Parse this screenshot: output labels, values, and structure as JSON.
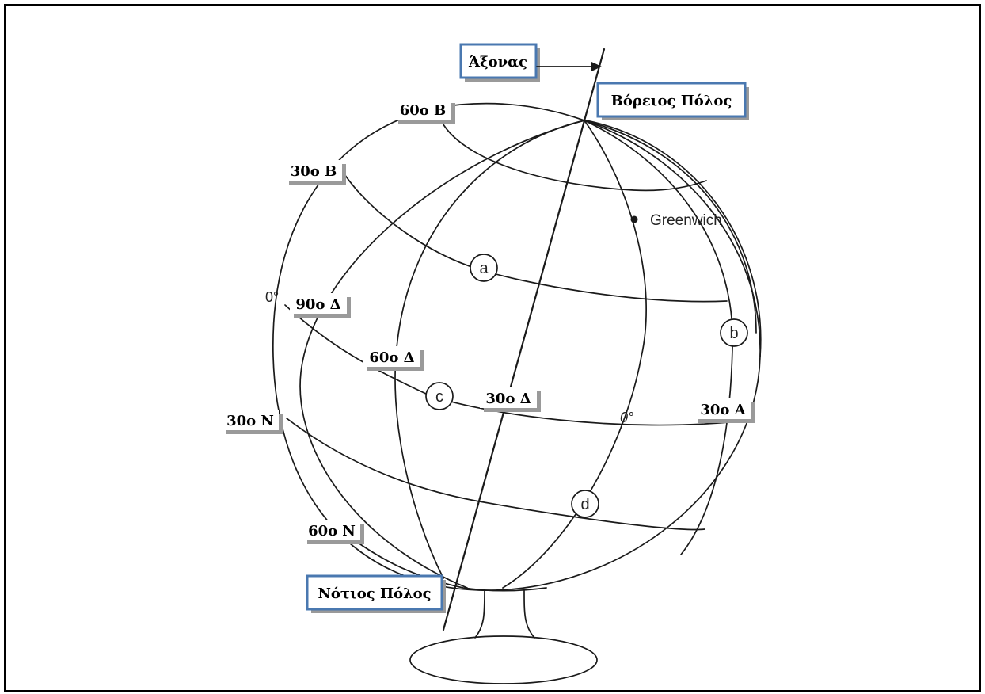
{
  "callouts": {
    "axis": "Άξονας",
    "north_pole": "Βόρειος Πόλος",
    "south_pole": "Νότιος Πόλος"
  },
  "latitudes": {
    "lat_60n": "60ο Β",
    "lat_30n": "30ο Β",
    "lat_30s": "30ο Ν",
    "lat_60s": "60ο Ν"
  },
  "longitudes": {
    "lon_90w": "90ο Δ",
    "lon_60w": "60ο Δ",
    "lon_30w": "30ο Δ",
    "lon_30e": "30ο Α"
  },
  "graticule_labels": {
    "equator_zero": "0°",
    "meridian_zero": "0°",
    "greenwich": "Greenwich"
  },
  "points": {
    "a": "a",
    "b": "b",
    "c": "c",
    "d": "d"
  }
}
